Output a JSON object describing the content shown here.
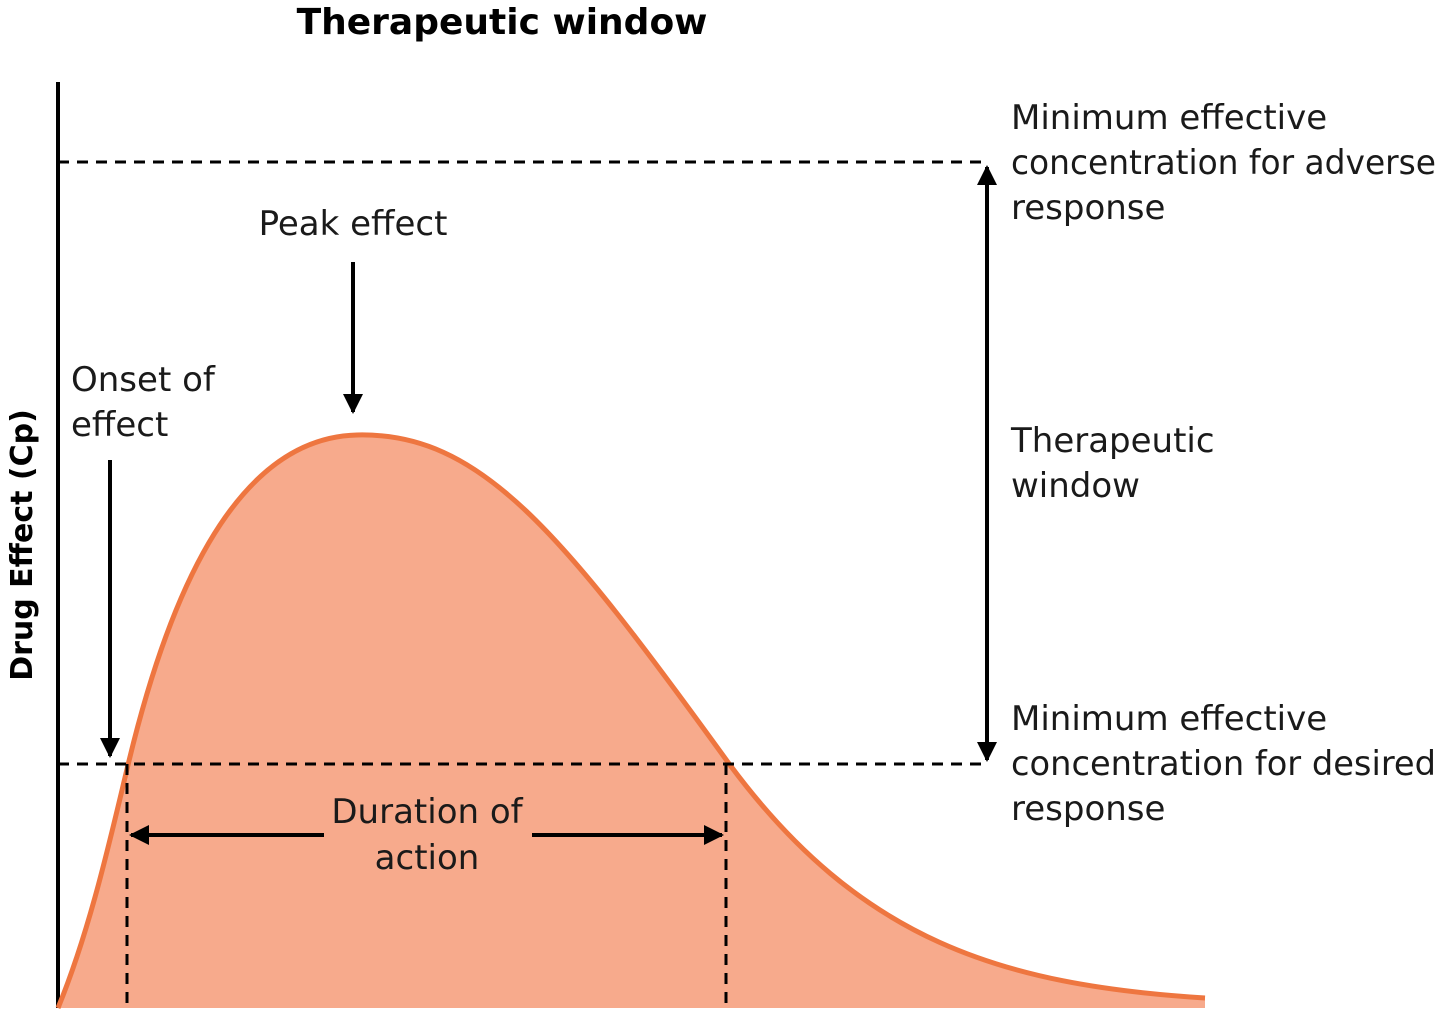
{
  "title": "Therapeutic window",
  "y_axis_label": "Drug Effect (Cp)",
  "annotations": {
    "peak_effect": "Peak effect",
    "onset_line1": "Onset of",
    "onset_line2": "effect",
    "duration_line1": "Duration of",
    "duration_line2": "action",
    "adverse_line1": "Minimum effective",
    "adverse_line2": "concentration for adverse",
    "adverse_line3": "response",
    "window_line1": "Therapeutic",
    "window_line2": "window",
    "desired_line1": "Minimum effective",
    "desired_line2": "concentration for desired",
    "desired_line3": "response"
  },
  "colors": {
    "curve_stroke": "#EE7640",
    "curve_fill": "#F7AA8C",
    "lines": "#000000"
  }
}
